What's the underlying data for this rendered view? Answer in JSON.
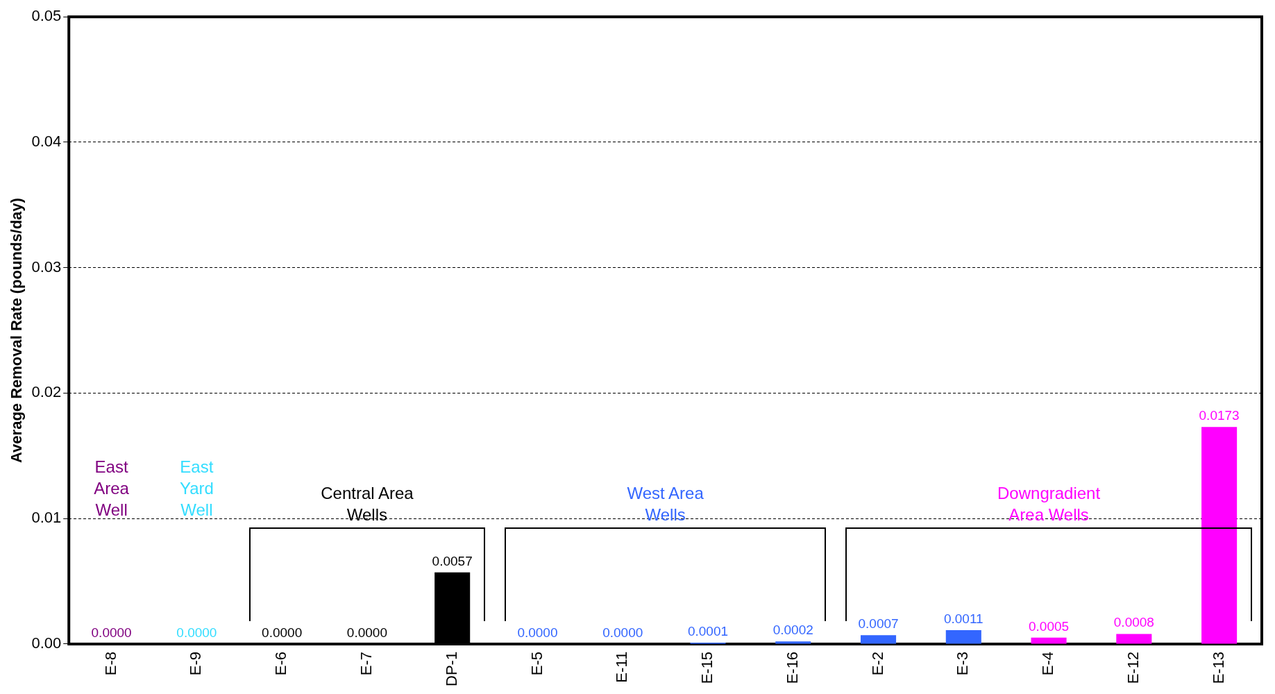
{
  "chart_data": {
    "type": "bar",
    "ylabel": "Average Removal Rate (pounds/day)",
    "categories": [
      "E-8",
      "E-9",
      "E-6",
      "E-7",
      "DP-1",
      "E-5",
      "E-11",
      "E-15",
      "E-16",
      "E-2",
      "E-3",
      "E-4",
      "E-12",
      "E-13"
    ],
    "values": [
      0,
      0,
      0,
      0,
      0.0057,
      0,
      0,
      0.0001,
      0.0002,
      0.0007,
      0.0011,
      0.0005,
      0.0008,
      0.0173
    ],
    "value_labels": [
      "0.0000",
      "0.0000",
      "0.0000",
      "0.0000",
      "0.0057",
      "0.0000",
      "0.0000",
      "0.0001",
      "0.0002",
      "0.0007",
      "0.0011",
      "0.0005",
      "0.0008",
      "0.0173"
    ],
    "colors": [
      "#800080",
      "#33ddff",
      "#000000",
      "#000000",
      "#000000",
      "#3366ff",
      "#3366ff",
      "#3366ff",
      "#3366ff",
      "#3366ff",
      "#3366ff",
      "#ff00ff",
      "#ff00ff",
      "#ff00ff"
    ],
    "ylim": [
      0,
      0.05
    ],
    "yticks": [
      {
        "value": 0,
        "label": "0.00"
      },
      {
        "value": 0.01,
        "label": "0.01"
      },
      {
        "value": 0.02,
        "label": "0.02"
      },
      {
        "value": 0.03,
        "label": "0.03"
      },
      {
        "value": 0.04,
        "label": "0.04"
      },
      {
        "value": 0.05,
        "label": "0.05"
      }
    ],
    "grid": "y",
    "legend": false,
    "annotations": [
      "East\nArea\nWell",
      "East\nYard\nWell",
      "Central Area\nWells",
      "West Area\nWells",
      "Downgradient\nArea Wells"
    ]
  }
}
